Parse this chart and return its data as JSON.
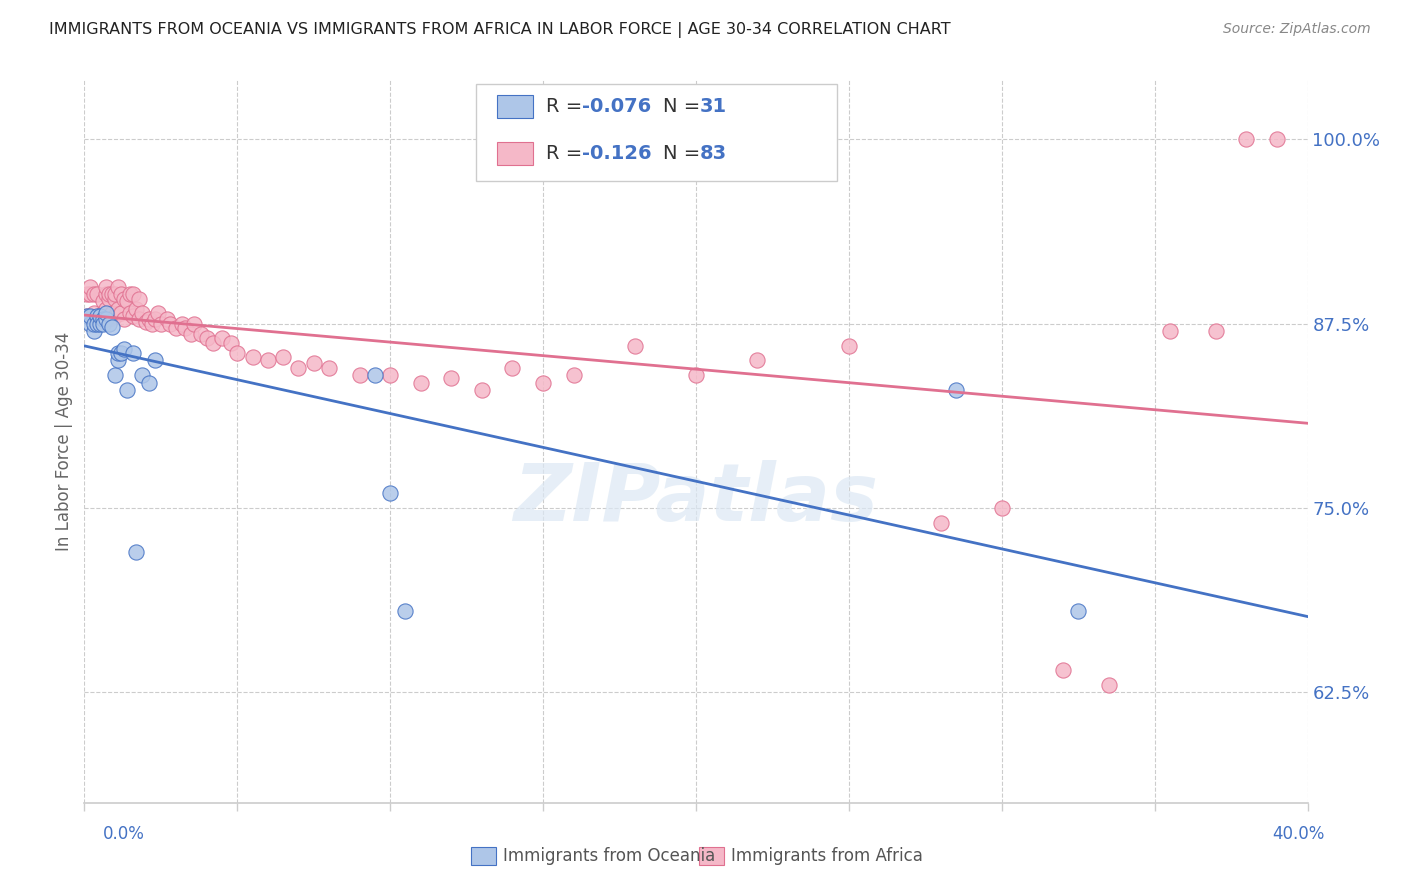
{
  "title": "IMMIGRANTS FROM OCEANIA VS IMMIGRANTS FROM AFRICA IN LABOR FORCE | AGE 30-34 CORRELATION CHART",
  "source": "Source: ZipAtlas.com",
  "ylabel": "In Labor Force | Age 30-34",
  "right_yticks": [
    0.625,
    0.75,
    0.875,
    1.0
  ],
  "right_yticklabels": [
    "62.5%",
    "75.0%",
    "87.5%",
    "100.0%"
  ],
  "xmin": 0.0,
  "xmax": 0.4,
  "ymin": 0.55,
  "ymax": 1.04,
  "legend_oceania_R": "-0.076",
  "legend_oceania_N": "31",
  "legend_africa_R": "-0.126",
  "legend_africa_N": "83",
  "oceania_color": "#aec6e8",
  "africa_color": "#f5b8c8",
  "oceania_line_color": "#4472c4",
  "africa_line_color": "#e07090",
  "watermark": "ZIPatlas",
  "oceania_x": [
    0.001,
    0.002,
    0.002,
    0.003,
    0.003,
    0.004,
    0.004,
    0.005,
    0.005,
    0.006,
    0.006,
    0.007,
    0.007,
    0.008,
    0.009,
    0.01,
    0.011,
    0.011,
    0.012,
    0.013,
    0.014,
    0.016,
    0.017,
    0.019,
    0.021,
    0.023,
    0.095,
    0.1,
    0.105,
    0.285,
    0.325
  ],
  "oceania_y": [
    0.88,
    0.875,
    0.88,
    0.87,
    0.875,
    0.88,
    0.875,
    0.875,
    0.88,
    0.878,
    0.875,
    0.878,
    0.882,
    0.875,
    0.873,
    0.84,
    0.85,
    0.855,
    0.855,
    0.858,
    0.83,
    0.855,
    0.72,
    0.84,
    0.835,
    0.85,
    0.84,
    0.76,
    0.68,
    0.83,
    0.68
  ],
  "africa_x": [
    0.001,
    0.001,
    0.002,
    0.002,
    0.003,
    0.003,
    0.004,
    0.004,
    0.005,
    0.005,
    0.006,
    0.006,
    0.007,
    0.007,
    0.007,
    0.008,
    0.008,
    0.008,
    0.009,
    0.009,
    0.01,
    0.01,
    0.01,
    0.011,
    0.011,
    0.012,
    0.012,
    0.013,
    0.013,
    0.014,
    0.015,
    0.015,
    0.016,
    0.016,
    0.017,
    0.018,
    0.018,
    0.019,
    0.02,
    0.021,
    0.022,
    0.023,
    0.024,
    0.025,
    0.027,
    0.028,
    0.03,
    0.032,
    0.033,
    0.035,
    0.036,
    0.038,
    0.04,
    0.042,
    0.045,
    0.048,
    0.05,
    0.055,
    0.06,
    0.065,
    0.07,
    0.075,
    0.08,
    0.09,
    0.1,
    0.11,
    0.12,
    0.13,
    0.14,
    0.15,
    0.16,
    0.18,
    0.2,
    0.22,
    0.25,
    0.28,
    0.3,
    0.32,
    0.335,
    0.355,
    0.37,
    0.38,
    0.39
  ],
  "africa_y": [
    0.895,
    0.88,
    0.895,
    0.9,
    0.882,
    0.895,
    0.878,
    0.895,
    0.88,
    0.878,
    0.882,
    0.89,
    0.895,
    0.885,
    0.9,
    0.878,
    0.892,
    0.895,
    0.882,
    0.895,
    0.88,
    0.892,
    0.895,
    0.885,
    0.9,
    0.882,
    0.895,
    0.878,
    0.892,
    0.89,
    0.882,
    0.895,
    0.88,
    0.895,
    0.885,
    0.878,
    0.892,
    0.882,
    0.876,
    0.878,
    0.875,
    0.878,
    0.882,
    0.875,
    0.878,
    0.875,
    0.872,
    0.875,
    0.872,
    0.868,
    0.875,
    0.868,
    0.865,
    0.862,
    0.865,
    0.862,
    0.855,
    0.852,
    0.85,
    0.852,
    0.845,
    0.848,
    0.845,
    0.84,
    0.84,
    0.835,
    0.838,
    0.83,
    0.845,
    0.835,
    0.84,
    0.86,
    0.84,
    0.85,
    0.86,
    0.74,
    0.75,
    0.64,
    0.63,
    0.87,
    0.87,
    1.0,
    1.0
  ]
}
